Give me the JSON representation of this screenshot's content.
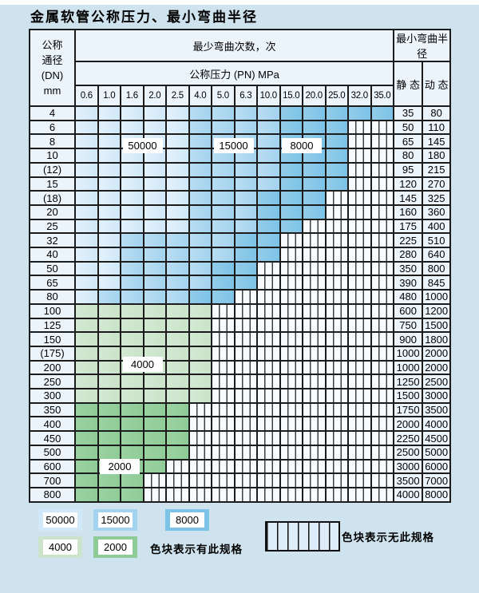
{
  "title": "金属软管公称压力、最小弯曲半径",
  "colors": {
    "page_bg": "#cfe3ee",
    "cell_bg": "#ecf4fb",
    "grid_line": "#1c1c1c",
    "band_L": [
      "#e3f1fb",
      "#d0e8f7"
    ],
    "band_M": [
      "#b9ddf3",
      "#a3d3ee"
    ],
    "band_D": [
      "#92cce9",
      "#7dc3e7"
    ],
    "band_G": [
      "#d3e8d2",
      "#cbe3ca"
    ],
    "band_K": [
      "#9ad2a2",
      "#8fcb97"
    ],
    "hatch_line": "#3c4046",
    "hatch_bg": "#f7fbfe",
    "legend_hatch_bg": "#ddecf8"
  },
  "table": {
    "header": {
      "dn_lines": [
        "公称",
        "通径",
        "(DN)",
        "mm"
      ],
      "bend_times": "最少弯曲次数，次",
      "pressure": "公称压力 (PN) MPa",
      "radius": "最小弯曲半径",
      "static_label": "静 态",
      "dynamic_label": "动 态",
      "pressures": [
        "0.6",
        "1.0",
        "1.6",
        "2.0",
        "2.5",
        "4.0",
        "5.0",
        "6.3",
        "10.0",
        "15.0",
        "20.0",
        "25.0",
        "32.0",
        "35.0"
      ]
    },
    "band_meaning": {
      "L": "50000",
      "M": "15000",
      "D": "8000",
      "G": "4000",
      "K": "2000",
      "X": "no-spec"
    },
    "rows": [
      {
        "dn": "4",
        "static": "35",
        "dynamic": "80",
        "cells": "LLLLLMMMMDDDDD"
      },
      {
        "dn": "6",
        "static": "50",
        "dynamic": "110",
        "cells": "LLLLLMMMMDDDXX"
      },
      {
        "dn": "8",
        "static": "65",
        "dynamic": "145",
        "cells": "LLLLLMMMMDDDXX"
      },
      {
        "dn": "10",
        "static": "80",
        "dynamic": "180",
        "cells": "LLLLLMMMMDDDXX"
      },
      {
        "dn": "(12)",
        "static": "95",
        "dynamic": "215",
        "cells": "LLLLLMMMMDDDXX"
      },
      {
        "dn": "15",
        "static": "120",
        "dynamic": "270",
        "cells": "LLLLLMMMMDDDXX"
      },
      {
        "dn": "(18)",
        "static": "145",
        "dynamic": "325",
        "cells": "LLLLLMMMDDDXXX"
      },
      {
        "dn": "20",
        "static": "160",
        "dynamic": "360",
        "cells": "LLLLLMMMDDDXXX"
      },
      {
        "dn": "25",
        "static": "175",
        "dynamic": "400",
        "cells": "LLLLLMMMDDXXXX"
      },
      {
        "dn": "32",
        "static": "225",
        "dynamic": "510",
        "cells": "LLMMMMMDDXXXXX"
      },
      {
        "dn": "40",
        "static": "280",
        "dynamic": "640",
        "cells": "LLMMMMMDDXXXXX"
      },
      {
        "dn": "50",
        "static": "350",
        "dynamic": "800",
        "cells": "LLMMMMDDXXXXXX"
      },
      {
        "dn": "65",
        "static": "390",
        "dynamic": "845",
        "cells": "LLMMMMDDXXXXXX"
      },
      {
        "dn": "80",
        "static": "480",
        "dynamic": "1000",
        "cells": "LMMMMDDXXXXXXX"
      },
      {
        "dn": "100",
        "static": "600",
        "dynamic": "1200",
        "cells": "GGGGGGXXXXXXXX"
      },
      {
        "dn": "125",
        "static": "750",
        "dynamic": "1500",
        "cells": "GGGGGGXXXXXXXX"
      },
      {
        "dn": "150",
        "static": "900",
        "dynamic": "1800",
        "cells": "GGGGGGXXXXXXXX"
      },
      {
        "dn": "(175)",
        "static": "1000",
        "dynamic": "2000",
        "cells": "GGGGGGXXXXXXXX"
      },
      {
        "dn": "200",
        "static": "1000",
        "dynamic": "2000",
        "cells": "GGGGGGXXXXXXXX"
      },
      {
        "dn": "250",
        "static": "1250",
        "dynamic": "2500",
        "cells": "GGGGGGXXXXXXXX"
      },
      {
        "dn": "300",
        "static": "1500",
        "dynamic": "3000",
        "cells": "GGGGGGXXXXXXXX"
      },
      {
        "dn": "350",
        "static": "1750",
        "dynamic": "3500",
        "cells": "KKKKKXXXXXXXXX"
      },
      {
        "dn": "400",
        "static": "2000",
        "dynamic": "4000",
        "cells": "KKKKKXXXXXXXXX"
      },
      {
        "dn": "450",
        "static": "2250",
        "dynamic": "4500",
        "cells": "KKKKKXXXXXXXXX"
      },
      {
        "dn": "500",
        "static": "2500",
        "dynamic": "5000",
        "cells": "KKKKKXXXXXXXXX"
      },
      {
        "dn": "600",
        "static": "3000",
        "dynamic": "6000",
        "cells": "KKKKXXXXXXXXXX"
      },
      {
        "dn": "700",
        "static": "3500",
        "dynamic": "7000",
        "cells": "KKKXXXXXXXXXXX"
      },
      {
        "dn": "800",
        "static": "4000",
        "dynamic": "8000",
        "cells": "KKKXXXXXXXXXXX"
      }
    ]
  },
  "overlays": [
    {
      "text": "50000",
      "row": 3,
      "col": 2,
      "span": 2
    },
    {
      "text": "15000",
      "row": 3,
      "col": 6,
      "span": 2
    },
    {
      "text": "8000",
      "row": 3,
      "col": 9,
      "span": 2
    },
    {
      "text": "4000",
      "row": 18,
      "col": 2,
      "span": 2
    },
    {
      "text": "2000",
      "row": 25,
      "col": 1,
      "span": 2
    }
  ],
  "legend": {
    "items": [
      {
        "label": "50000",
        "band": "L"
      },
      {
        "label": "15000",
        "band": "M"
      },
      {
        "label": "8000",
        "band": "D"
      },
      {
        "label": "4000",
        "band": "G"
      },
      {
        "label": "2000",
        "band": "K"
      }
    ],
    "has_spec_text": "色块表示有此规格",
    "no_spec_text": "色块表示无此规格"
  }
}
